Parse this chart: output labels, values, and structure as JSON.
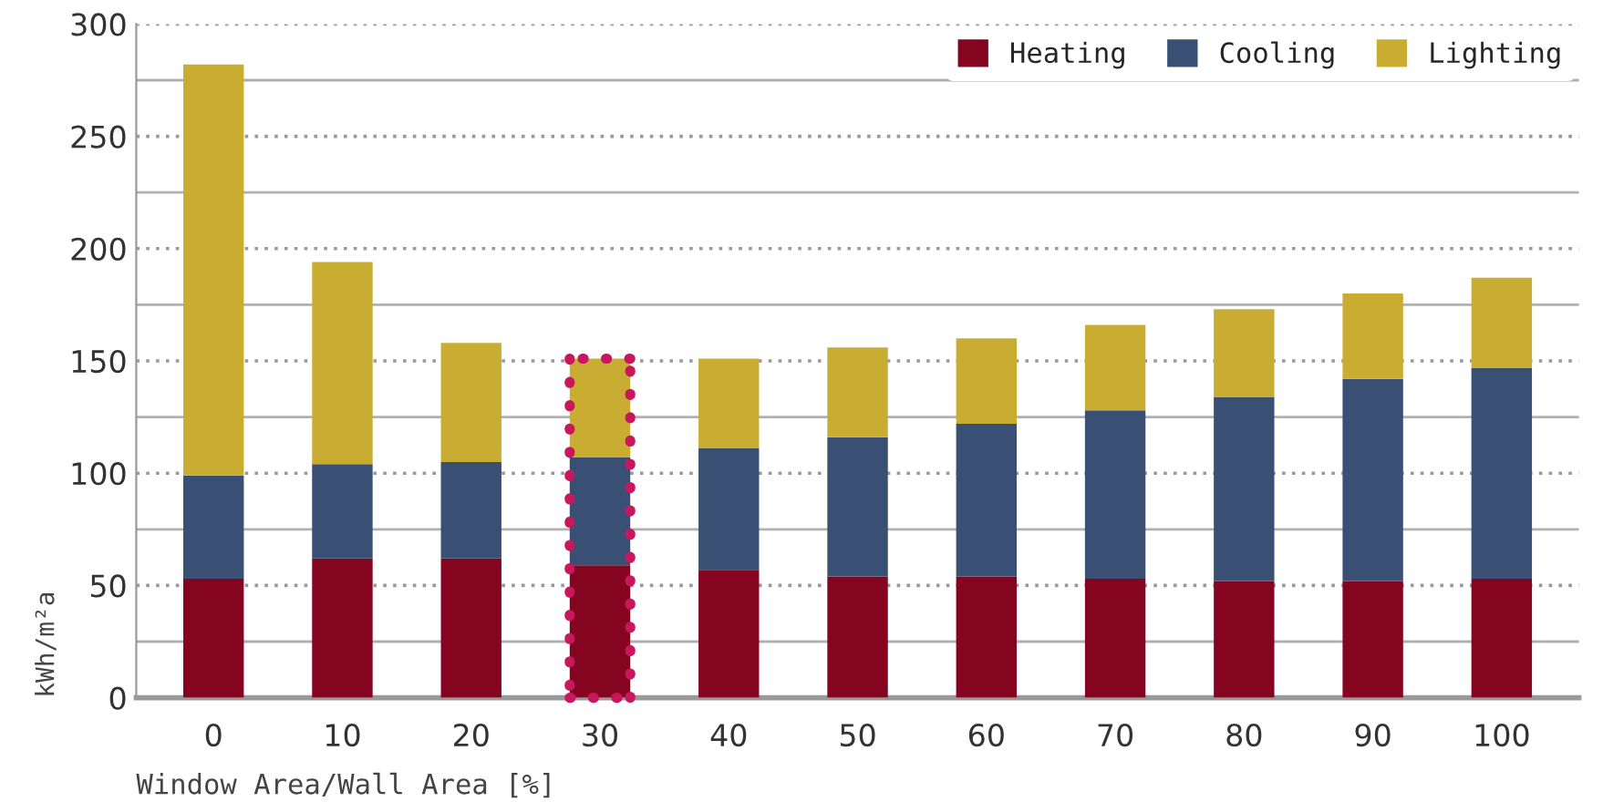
{
  "chart_data": {
    "type": "bar",
    "stacked": true,
    "xlabel": "Window Area/Wall Area [%]",
    "ylabel": "kWh/m²a",
    "categories": [
      "0",
      "10",
      "20",
      "30",
      "40",
      "50",
      "60",
      "70",
      "80",
      "90",
      "100"
    ],
    "series": [
      {
        "name": "Heating",
        "color": "#850520",
        "values": [
          53,
          62,
          62,
          59,
          57,
          54,
          54,
          53,
          52,
          52,
          53
        ]
      },
      {
        "name": "Cooling",
        "color": "#3a4f74",
        "values": [
          46,
          42,
          43,
          48,
          54,
          62,
          68,
          75,
          82,
          90,
          94
        ]
      },
      {
        "name": "Lighting",
        "color": "#c9ad32",
        "values": [
          183,
          90,
          53,
          44,
          40,
          40,
          38,
          38,
          39,
          38,
          40
        ]
      }
    ],
    "ylim": [
      0,
      300
    ],
    "yticks": [
      0,
      {
        "value": 25,
        "label": null
      },
      50,
      {
        "value": 75,
        "label": null
      },
      100,
      {
        "value": 125,
        "label": null
      },
      150,
      {
        "value": 175,
        "label": null
      },
      200,
      {
        "value": 225,
        "label": null
      },
      250,
      {
        "value": 275,
        "label": null
      },
      300
    ],
    "grid": "y",
    "legend": "top right"
  }
}
